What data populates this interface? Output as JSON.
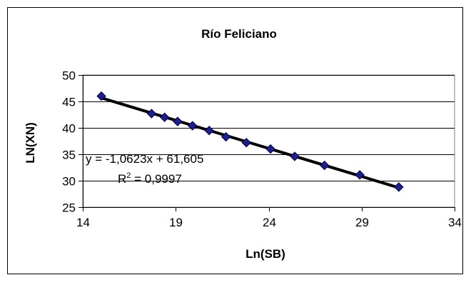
{
  "chart_data": {
    "type": "scatter",
    "title": "Río Feliciano",
    "xlabel": "Ln(SB)",
    "ylabel": "LN(XN)",
    "xlim": [
      14,
      34
    ],
    "ylim": [
      25,
      50
    ],
    "xticks": [
      14,
      19,
      24,
      29,
      34
    ],
    "yticks": [
      25,
      30,
      35,
      40,
      45,
      50
    ],
    "x_tick_labels": [
      "14",
      "19",
      "24",
      "29",
      "34"
    ],
    "y_tick_labels": [
      "25",
      "30",
      "35",
      "40",
      "45",
      "50"
    ],
    "grid": "horizontal",
    "legend": "none",
    "series": [
      {
        "marker": "diamond",
        "color": "#1f1f8a",
        "points": [
          [
            15.0,
            46.0
          ],
          [
            17.7,
            42.7
          ],
          [
            18.4,
            42.0
          ],
          [
            19.1,
            41.2
          ],
          [
            19.9,
            40.4
          ],
          [
            20.8,
            39.5
          ],
          [
            21.7,
            38.3
          ],
          [
            22.8,
            37.2
          ],
          [
            24.1,
            36.0
          ],
          [
            25.4,
            34.6
          ],
          [
            27.0,
            32.9
          ],
          [
            28.9,
            31.1
          ],
          [
            31.0,
            28.8
          ]
        ]
      }
    ],
    "trendline": {
      "slope": -1.0623,
      "intercept": 61.605,
      "x_range": [
        15.0,
        31.0
      ],
      "color": "#000000"
    },
    "annotation": {
      "equation": "y = -1,0623x + 61,605",
      "r2_prefix": "R",
      "r2_sup": "2",
      "r2_suffix": " = 0,9997"
    }
  }
}
